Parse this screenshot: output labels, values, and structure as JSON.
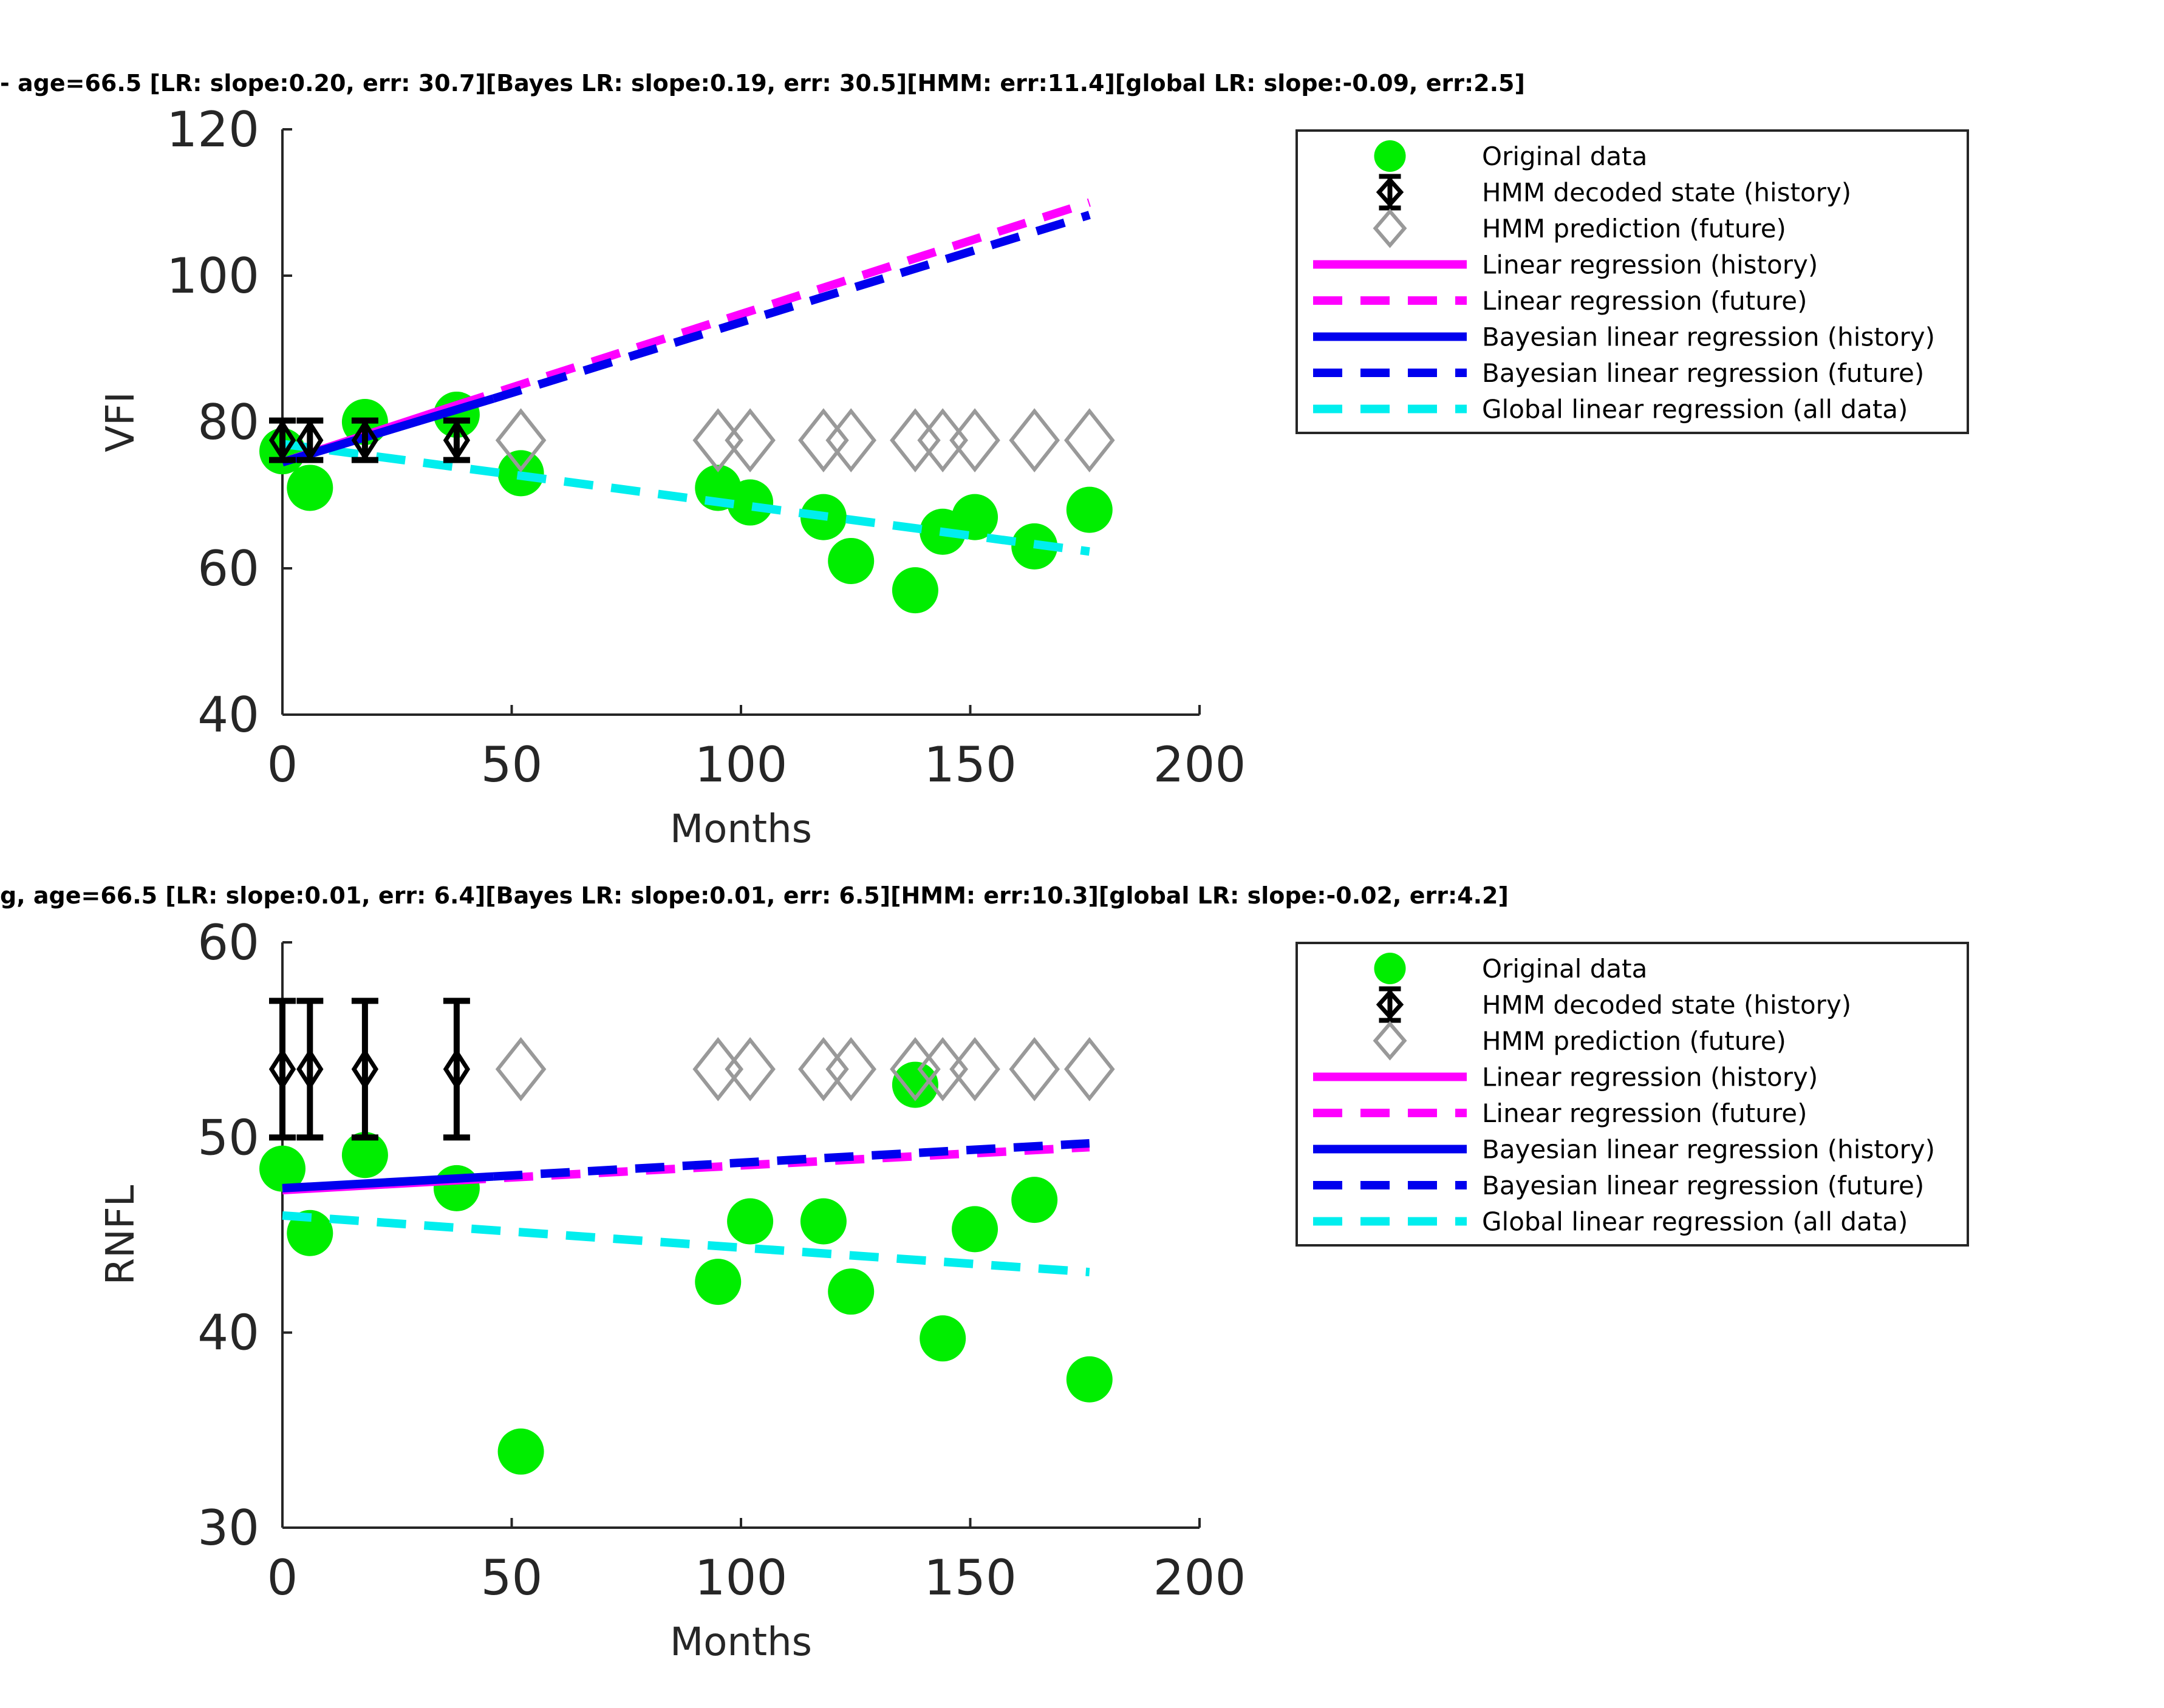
{
  "colors": {
    "original": "#00ee00",
    "hmm_history": "#000000",
    "hmm_future": "#999999",
    "lr": "#ff00ff",
    "bayes": "#0000ee",
    "global": "#00eeee"
  },
  "legend": [
    "Original data",
    "HMM decoded state (history)",
    "HMM prediction (future)",
    "Linear regression (history)",
    "Linear regression (future)",
    "Bayesian linear regression (history)",
    "Bayesian linear regression (future)",
    "Global linear regression (all data)"
  ],
  "chart_data": [
    {
      "type": "scatter",
      "title": "- age=66.5 [LR: slope:0.20, err: 30.7][Bayes LR: slope:0.19, err: 30.5][HMM: err:11.4][global LR: slope:-0.09, err:2.5]",
      "xlabel": "Months",
      "ylabel": "VFI",
      "xlim": [
        0,
        200
      ],
      "ylim": [
        40,
        120
      ],
      "xticks": [
        "0",
        "50",
        "100",
        "150",
        "200"
      ],
      "yticks": [
        "40",
        "60",
        "80",
        "100",
        "120"
      ],
      "legend_position": "right",
      "original": {
        "x": [
          0,
          6,
          18,
          38,
          52,
          95,
          102,
          118,
          124,
          138,
          144,
          151,
          164,
          176
        ],
        "y": [
          76,
          71,
          80,
          81,
          73,
          71,
          69,
          67,
          61,
          57,
          65,
          67,
          63,
          68
        ]
      },
      "hmm_history": {
        "x": [
          0,
          6,
          18,
          38
        ],
        "y": [
          77.5,
          77.5,
          77.5,
          77.5
        ],
        "err_low": [
          74.8,
          74.8,
          74.8,
          74.8
        ],
        "err_high": [
          80.2,
          80.2,
          80.2,
          80.2
        ]
      },
      "hmm_future": {
        "x": [
          52,
          95,
          102,
          118,
          124,
          138,
          144,
          151,
          164,
          176
        ],
        "y": [
          77.5,
          77.5,
          77.5,
          77.5,
          77.5,
          77.5,
          77.5,
          77.5,
          77.5,
          77.5
        ]
      },
      "lr_history": {
        "x": [
          0,
          38
        ],
        "y": [
          74.5,
          82.3
        ]
      },
      "lr_future": {
        "x": [
          38,
          176
        ],
        "y": [
          82.3,
          110.0
        ]
      },
      "bayes_history": {
        "x": [
          0,
          46
        ],
        "y": [
          74.5,
          83.2
        ]
      },
      "bayes_future": {
        "x": [
          46,
          176
        ],
        "y": [
          83.2,
          108.3
        ]
      },
      "global": {
        "x": [
          0,
          176
        ],
        "y": [
          77.0,
          62.3
        ]
      }
    },
    {
      "type": "scatter",
      "title": "g, age=66.5 [LR: slope:0.01, err: 6.4][Bayes LR: slope:0.01, err: 6.5][HMM: err:10.3][global LR: slope:-0.02, err:4.2]",
      "xlabel": "Months",
      "ylabel": "RNFL",
      "xlim": [
        0,
        200
      ],
      "ylim": [
        30,
        60
      ],
      "xticks": [
        "0",
        "50",
        "100",
        "150",
        "200"
      ],
      "yticks": [
        "30",
        "40",
        "50",
        "60"
      ],
      "legend_position": "right",
      "original": {
        "x": [
          0,
          6,
          18,
          38,
          52,
          95,
          102,
          118,
          124,
          138,
          144,
          151,
          164,
          176
        ],
        "y": [
          48.4,
          45.1,
          49.1,
          47.4,
          33.9,
          42.6,
          45.7,
          45.7,
          42.1,
          52.7,
          39.7,
          45.3,
          46.8,
          37.6
        ]
      },
      "hmm_history": {
        "x": [
          0,
          6,
          18,
          38
        ],
        "y": [
          53.5,
          53.5,
          53.5,
          53.5
        ],
        "err_low": [
          50.0,
          50.0,
          50.0,
          50.0
        ],
        "err_high": [
          57.0,
          57.0,
          57.0,
          57.0
        ]
      },
      "hmm_future": {
        "x": [
          52,
          95,
          102,
          118,
          124,
          138,
          144,
          151,
          164,
          176
        ],
        "y": [
          53.5,
          53.5,
          53.5,
          53.5,
          53.5,
          53.5,
          53.5,
          53.5,
          53.5,
          53.5
        ]
      },
      "lr_history": {
        "x": [
          0,
          38
        ],
        "y": [
          47.3,
          47.8
        ]
      },
      "lr_future": {
        "x": [
          38,
          176
        ],
        "y": [
          47.8,
          49.5
        ]
      },
      "bayes_history": {
        "x": [
          0,
          46
        ],
        "y": [
          47.4,
          48.0
        ]
      },
      "bayes_future": {
        "x": [
          46,
          176
        ],
        "y": [
          48.0,
          49.7
        ]
      },
      "global": {
        "x": [
          0,
          176
        ],
        "y": [
          46.0,
          43.1
        ]
      }
    }
  ]
}
